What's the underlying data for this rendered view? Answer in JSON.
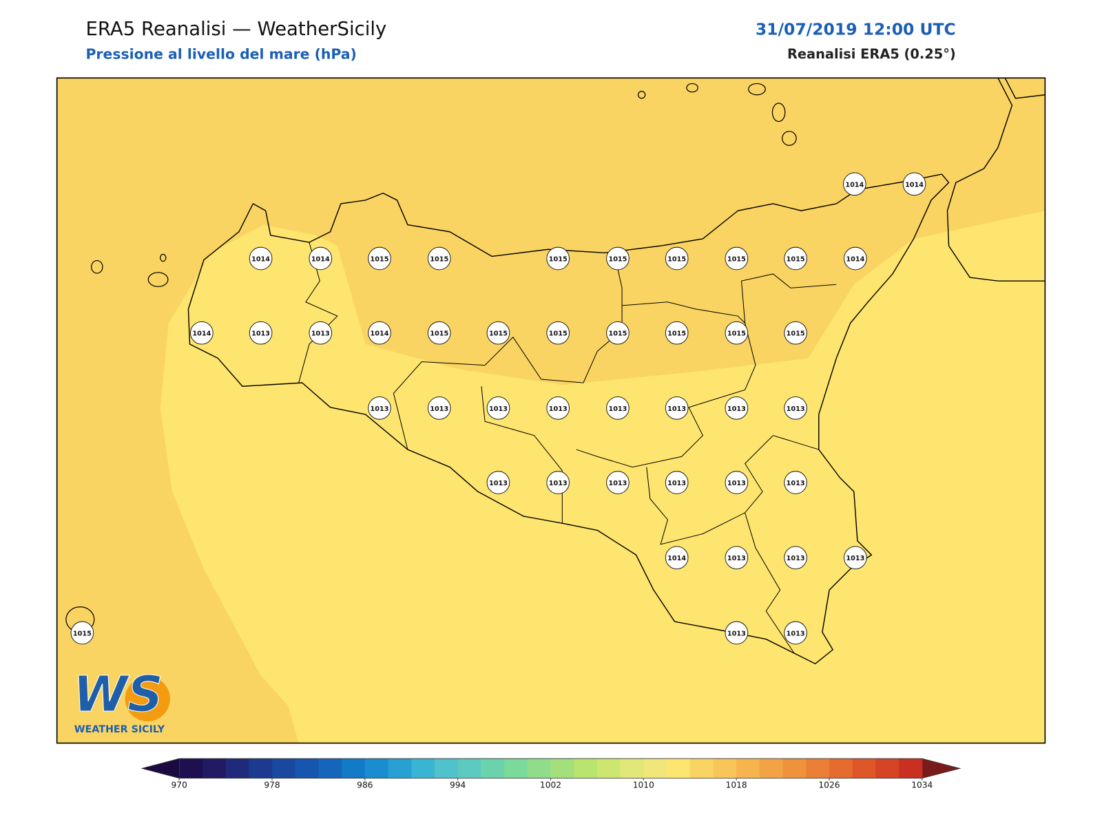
{
  "header": {
    "title": "ERA5 Reanalisi — WeatherSicily",
    "subtitle": "Pressione al livello del mare (hPa)",
    "datetime": "31/07/2019 12:00 UTC",
    "source": "Reanalisi ERA5 (0.25°)"
  },
  "stations": [
    1014,
    1014,
    1014,
    1014,
    1015,
    1015,
    1015,
    1015,
    1015,
    1015,
    1015,
    1014,
    1014,
    1013,
    1013,
    1014,
    1015,
    1015,
    1015,
    1015,
    1015,
    1015,
    1015,
    1013,
    1013,
    1013,
    1013,
    1013,
    1013,
    1013,
    1013,
    1013,
    1013,
    1013,
    1013,
    1013,
    1013,
    1014,
    1013,
    1013,
    1013,
    1013,
    1013,
    1015
  ],
  "colorbar": {
    "range": [
      970,
      1034
    ],
    "ticks": [
      970,
      978,
      986,
      994,
      1002,
      1010,
      1018,
      1026,
      1034
    ],
    "colors": [
      "#1e1050",
      "#221a62",
      "#1f2a7a",
      "#1c3a8f",
      "#1a48a0",
      "#1656ae",
      "#1466bd",
      "#137ac8",
      "#1a8ccf",
      "#28a0d3",
      "#39b4d3",
      "#4fc2cc",
      "#5ccac0",
      "#6ad3ad",
      "#7ad99b",
      "#8fdd8a",
      "#a3e07c",
      "#b9e46e",
      "#cde66f",
      "#dfe878",
      "#f0e67a",
      "#fde56f",
      "#fad462",
      "#f8c55a",
      "#f5b44e",
      "#f2a345",
      "#ee923c",
      "#ea7f35",
      "#e56b2e",
      "#df5728",
      "#d54424",
      "#c93022"
    ],
    "under_color": "#1a0a40",
    "over_color": "#7a1a1a"
  },
  "logo": {
    "mark": "WS",
    "name": "WEATHER SICILY"
  }
}
